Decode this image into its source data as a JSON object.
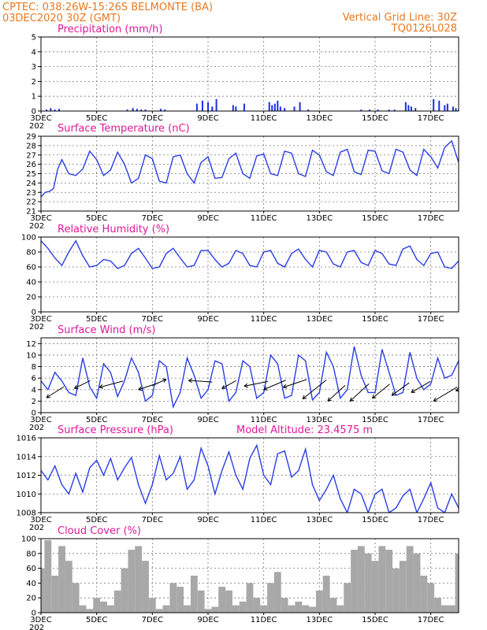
{
  "header": {
    "line1_left": "CPTEC:   038:26W-15:26S  BELMONTE (BA)",
    "line2_left": "03DEC2020 30Z (GMT)",
    "line1_right": "Vertical Grid Line: 30Z",
    "line2_right": "TQ0126L028"
  },
  "x_tick_labels": [
    "3DEC",
    "5DEC",
    "7DEC",
    "9DEC",
    "11DEC",
    "13DEC",
    "15DEC",
    "17DEC"
  ],
  "x_tick_stub": "202",
  "colors": {
    "title": "#e0189a",
    "header": "#e87820",
    "series": "#2a3ee8",
    "cloud": "#a8a8a8"
  },
  "chart_data": [
    {
      "id": "precip",
      "type": "bar",
      "title": "Precipitation (mm/h)",
      "ylim": [
        0,
        5
      ],
      "yticks": [
        0,
        1,
        2,
        3,
        4,
        5
      ],
      "xlim": [
        0,
        15
      ],
      "x": [
        0.2,
        0.35,
        0.5,
        0.65,
        3.1,
        3.3,
        3.45,
        3.6,
        3.75,
        4.3,
        4.45,
        5.6,
        5.8,
        6.0,
        6.15,
        6.3,
        6.9,
        7.0,
        7.3,
        8.2,
        8.3,
        8.4,
        8.5,
        8.6,
        8.75,
        9.1,
        9.3,
        9.6,
        11.5,
        11.8,
        12.1,
        12.5,
        12.7,
        13.1,
        13.2,
        13.3,
        13.45,
        14.1,
        14.3,
        14.5,
        14.6,
        14.8,
        14.9,
        15.0
      ],
      "values": [
        0.1,
        0.2,
        0.1,
        0.15,
        0.1,
        0.2,
        0.15,
        0.1,
        0.1,
        0.15,
        0.1,
        0.5,
        0.7,
        0.6,
        0.3,
        0.8,
        0.4,
        0.3,
        0.5,
        0.6,
        0.4,
        0.5,
        0.7,
        0.3,
        0.2,
        0.3,
        0.6,
        0.1,
        0.1,
        0.1,
        0.1,
        0.1,
        0.1,
        0.6,
        0.4,
        0.3,
        0.2,
        0.8,
        0.7,
        0.4,
        0.5,
        0.3,
        0.2,
        0.1
      ]
    },
    {
      "id": "temp",
      "type": "line",
      "title": "Surface Temperature (nC)",
      "ylim": [
        21,
        29
      ],
      "yticks": [
        21,
        22,
        23,
        24,
        25,
        26,
        27,
        28,
        29
      ],
      "xlim": [
        0,
        15
      ],
      "x": [
        0,
        0.15,
        0.3,
        0.45,
        0.6,
        0.75,
        1.0,
        1.25,
        1.5,
        1.75,
        2.0,
        2.25,
        2.5,
        2.75,
        3.0,
        3.25,
        3.5,
        3.75,
        4.0,
        4.25,
        4.5,
        4.75,
        5.0,
        5.25,
        5.5,
        5.75,
        6.0,
        6.25,
        6.5,
        6.75,
        7.0,
        7.25,
        7.5,
        7.75,
        8.0,
        8.25,
        8.5,
        8.75,
        9.0,
        9.25,
        9.5,
        9.75,
        10.0,
        10.25,
        10.5,
        10.75,
        11.0,
        11.25,
        11.5,
        11.75,
        12.0,
        12.25,
        12.5,
        12.75,
        13.0,
        13.25,
        13.5,
        13.75,
        14.0,
        14.25,
        14.5,
        14.75,
        15.0
      ],
      "values": [
        22.5,
        23.0,
        23.1,
        23.4,
        25.5,
        26.5,
        25.0,
        24.8,
        25.5,
        27.4,
        26.5,
        24.8,
        25.4,
        27.3,
        26.0,
        24.0,
        24.5,
        27.0,
        26.6,
        24.2,
        24.0,
        26.8,
        27.0,
        25.0,
        24.0,
        26.2,
        26.8,
        24.5,
        24.6,
        26.6,
        27.2,
        25.0,
        24.5,
        26.9,
        27.1,
        25.0,
        24.8,
        27.4,
        27.2,
        25.0,
        24.7,
        27.5,
        27.0,
        25.2,
        24.8,
        27.3,
        27.6,
        25.2,
        24.9,
        27.5,
        27.4,
        25.3,
        25.0,
        27.6,
        27.3,
        25.4,
        24.8,
        27.6,
        26.8,
        25.6,
        27.8,
        28.5,
        26.2
      ]
    },
    {
      "id": "rh",
      "type": "line",
      "title": "Relative Humidity (%)",
      "ylim": [
        0,
        100
      ],
      "yticks": [
        0,
        20,
        40,
        60,
        80,
        100
      ],
      "xlim": [
        0,
        15
      ],
      "x": [
        0,
        0.25,
        0.5,
        0.75,
        1.0,
        1.25,
        1.5,
        1.75,
        2.0,
        2.25,
        2.5,
        2.75,
        3.0,
        3.25,
        3.5,
        3.75,
        4.0,
        4.25,
        4.5,
        4.75,
        5.0,
        5.25,
        5.5,
        5.75,
        6.0,
        6.25,
        6.5,
        6.75,
        7.0,
        7.25,
        7.5,
        7.75,
        8.0,
        8.25,
        8.5,
        8.75,
        9.0,
        9.25,
        9.5,
        9.75,
        10.0,
        10.25,
        10.5,
        10.75,
        11.0,
        11.25,
        11.5,
        11.75,
        12.0,
        12.25,
        12.5,
        12.75,
        13.0,
        13.25,
        13.5,
        13.75,
        14.0,
        14.25,
        14.5,
        14.75,
        15.0
      ],
      "values": [
        95,
        85,
        72,
        62,
        80,
        95,
        75,
        60,
        62,
        70,
        68,
        58,
        62,
        78,
        85,
        72,
        58,
        60,
        78,
        85,
        72,
        60,
        62,
        82,
        82,
        70,
        60,
        65,
        82,
        78,
        62,
        60,
        80,
        82,
        65,
        60,
        78,
        84,
        70,
        60,
        82,
        80,
        64,
        60,
        80,
        82,
        66,
        62,
        82,
        78,
        64,
        62,
        84,
        88,
        70,
        62,
        78,
        80,
        60,
        58,
        68
      ]
    },
    {
      "id": "wind",
      "type": "line",
      "title": "Surface Wind (m/s)",
      "ylim": [
        0,
        13
      ],
      "yticks": [
        0,
        2,
        4,
        6,
        8,
        10,
        12
      ],
      "xlim": [
        0,
        15
      ],
      "x": [
        0,
        0.25,
        0.5,
        0.75,
        1.0,
        1.25,
        1.5,
        1.75,
        2.0,
        2.25,
        2.5,
        2.75,
        3.0,
        3.25,
        3.5,
        3.75,
        4.0,
        4.25,
        4.5,
        4.75,
        5.0,
        5.25,
        5.5,
        5.75,
        6.0,
        6.25,
        6.5,
        6.75,
        7.0,
        7.25,
        7.5,
        7.75,
        8.0,
        8.25,
        8.5,
        8.75,
        9.0,
        9.25,
        9.5,
        9.75,
        10.0,
        10.25,
        10.5,
        10.75,
        11.0,
        11.25,
        11.5,
        11.75,
        12.0,
        12.25,
        12.5,
        12.75,
        13.0,
        13.25,
        13.5,
        13.75,
        14.0,
        14.25,
        14.5,
        14.75,
        15.0
      ],
      "values": [
        5.5,
        4.0,
        7.0,
        5.5,
        3.5,
        3.0,
        9.5,
        4.5,
        2.5,
        8.5,
        7.0,
        2.8,
        5.5,
        9.5,
        7.0,
        2.0,
        3.0,
        9.0,
        8.0,
        1.0,
        3.5,
        9.5,
        6.5,
        2.5,
        4.0,
        9.0,
        8.5,
        2.0,
        3.5,
        9.0,
        8.0,
        2.5,
        3.5,
        10.0,
        8.5,
        2.5,
        3.0,
        10.0,
        9.0,
        2.2,
        3.5,
        10.5,
        8.0,
        2.5,
        4.0,
        11.5,
        6.5,
        3.5,
        3.5,
        11.0,
        7.0,
        3.0,
        3.5,
        10.5,
        6.0,
        4.0,
        5.0,
        9.5,
        6.0,
        6.5,
        9.0
      ],
      "vectors_x": [
        0.2,
        1.2,
        2.1,
        3.5,
        4.5,
        5.3,
        6.5,
        7.3,
        8.0,
        8.7,
        9.4,
        10.3,
        11.1,
        11.9,
        12.6,
        13.3,
        14.1,
        14.9
      ],
      "vectors_y": [
        2.6,
        4.2,
        4.4,
        4.0,
        5.8,
        5.6,
        4.2,
        4.6,
        4.0,
        4.4,
        2.4,
        2.0,
        2.0,
        2.5,
        3.0,
        3.5,
        2.0,
        3.8
      ],
      "vectors_dx": [
        22,
        20,
        30,
        24,
        -18,
        30,
        18,
        30,
        28,
        30,
        30,
        22,
        24,
        22,
        22,
        24,
        30,
        26
      ],
      "vectors_dy": [
        -14,
        -10,
        -8,
        -8,
        8,
        2,
        -10,
        -6,
        -12,
        -10,
        -24,
        -20,
        -22,
        -18,
        -16,
        -14,
        -18,
        -10
      ]
    },
    {
      "id": "pressure",
      "type": "line",
      "title": "Surface Pressure (hPa)",
      "subtitle": "Model Altitude: 23.4575 m",
      "ylim": [
        1008,
        1016
      ],
      "yticks": [
        1008,
        1010,
        1012,
        1014,
        1016
      ],
      "xlim": [
        0,
        15
      ],
      "x": [
        0,
        0.25,
        0.5,
        0.75,
        1.0,
        1.25,
        1.5,
        1.75,
        2.0,
        2.25,
        2.5,
        2.75,
        3.0,
        3.25,
        3.5,
        3.75,
        4.0,
        4.25,
        4.5,
        4.75,
        5.0,
        5.25,
        5.5,
        5.75,
        6.0,
        6.25,
        6.5,
        6.75,
        7.0,
        7.25,
        7.5,
        7.75,
        8.0,
        8.25,
        8.5,
        8.75,
        9.0,
        9.25,
        9.5,
        9.75,
        10.0,
        10.25,
        10.5,
        10.75,
        11.0,
        11.25,
        11.5,
        11.75,
        12.0,
        12.25,
        12.5,
        12.75,
        13.0,
        13.25,
        13.5,
        13.75,
        14.0,
        14.25,
        14.5,
        14.75,
        15.0
      ],
      "values": [
        1012.5,
        1011.5,
        1013.0,
        1011.0,
        1010.0,
        1012.2,
        1010.2,
        1012.8,
        1013.6,
        1012.0,
        1013.8,
        1011.5,
        1012.8,
        1013.9,
        1011.0,
        1009.0,
        1011.0,
        1014.1,
        1011.5,
        1012.2,
        1014.0,
        1010.5,
        1011.5,
        1014.9,
        1013.0,
        1010.0,
        1012.5,
        1014.5,
        1012.0,
        1010.5,
        1013.8,
        1015.2,
        1012.0,
        1011.0,
        1014.3,
        1014.6,
        1011.8,
        1012.5,
        1014.8,
        1011.0,
        1009.3,
        1010.5,
        1012.0,
        1009.5,
        1008.0,
        1010.5,
        1010.0,
        1008.0,
        1010.0,
        1010.5,
        1008.0,
        1008.5,
        1009.8,
        1010.5,
        1008.0,
        1009.5,
        1011.2,
        1008.5,
        1008.0,
        1010.0,
        1008.5
      ]
    },
    {
      "id": "cloud",
      "type": "area",
      "title": "Cloud Cover (%)",
      "ylim": [
        0,
        100
      ],
      "yticks": [
        0,
        20,
        40,
        60,
        80,
        100
      ],
      "xlim": [
        0,
        15
      ],
      "x": [
        0,
        0.25,
        0.5,
        0.75,
        1.0,
        1.25,
        1.5,
        1.75,
        2.0,
        2.25,
        2.5,
        2.75,
        3.0,
        3.25,
        3.5,
        3.75,
        4.0,
        4.25,
        4.5,
        4.75,
        5.0,
        5.25,
        5.5,
        5.75,
        6.0,
        6.25,
        6.5,
        6.75,
        7.0,
        7.25,
        7.5,
        7.75,
        8.0,
        8.25,
        8.5,
        8.75,
        9.0,
        9.25,
        9.5,
        9.75,
        10.0,
        10.25,
        10.5,
        10.75,
        11.0,
        11.25,
        11.5,
        11.75,
        12.0,
        12.25,
        12.5,
        12.75,
        13.0,
        13.25,
        13.5,
        13.75,
        14.0,
        14.25,
        14.5,
        14.75,
        15.0
      ],
      "values": [
        60,
        98,
        50,
        90,
        70,
        40,
        10,
        5,
        20,
        15,
        10,
        30,
        60,
        85,
        90,
        70,
        20,
        5,
        10,
        40,
        35,
        10,
        50,
        30,
        5,
        8,
        35,
        30,
        10,
        15,
        40,
        20,
        10,
        40,
        55,
        20,
        10,
        15,
        10,
        8,
        30,
        50,
        20,
        10,
        40,
        85,
        90,
        80,
        70,
        90,
        85,
        60,
        70,
        90,
        80,
        50,
        40,
        20,
        10,
        10,
        80
      ]
    }
  ]
}
